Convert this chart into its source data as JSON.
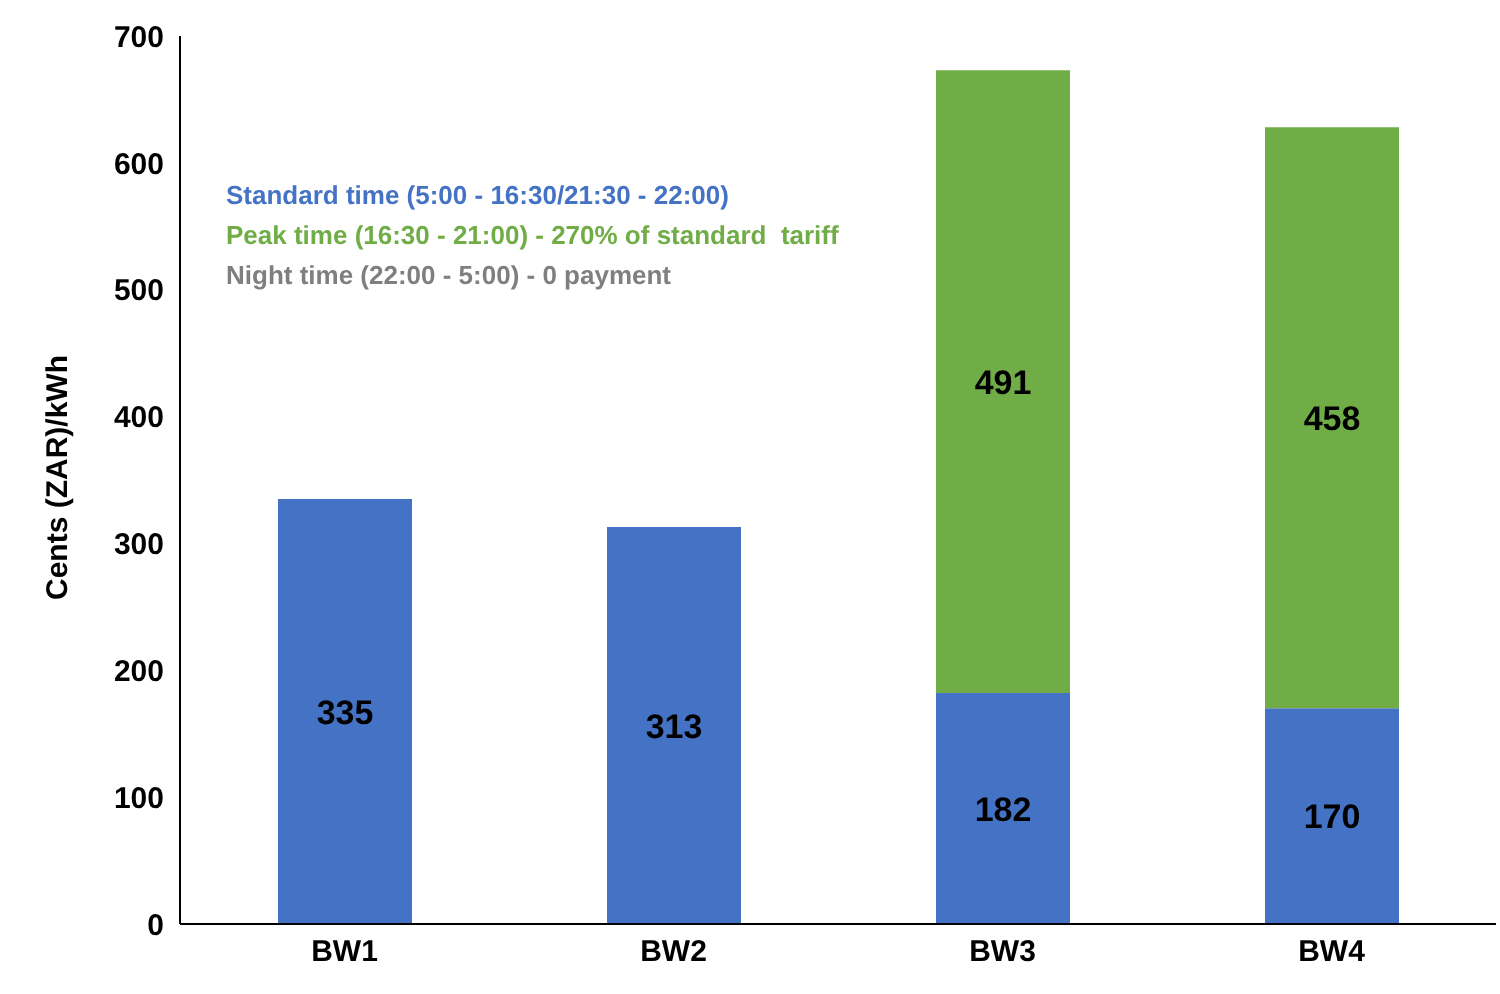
{
  "chart_data": {
    "type": "bar",
    "stacked": true,
    "ylabel": "Cents (ZAR)/kWh",
    "categories": [
      "BW1",
      "BW2",
      "BW3",
      "BW4"
    ],
    "series": [
      {
        "name": "Standard time (5:00 - 16:30/21:30 - 22:00)",
        "color": "#4472c4",
        "values": [
          335,
          313,
          182,
          170
        ]
      },
      {
        "name": "Peak time (16:30 - 21:00) - 270% of standard  tariff",
        "color": "#70ad47",
        "values": [
          null,
          null,
          491,
          458
        ]
      }
    ],
    "annotations": [
      "Night time (22:00 - 5:00) - 0 payment"
    ],
    "ylim": [
      0,
      700
    ],
    "yticks": [
      0,
      100,
      200,
      300,
      400,
      500,
      600,
      700
    ],
    "grid": false,
    "legend": "top left",
    "data_labels": true
  }
}
